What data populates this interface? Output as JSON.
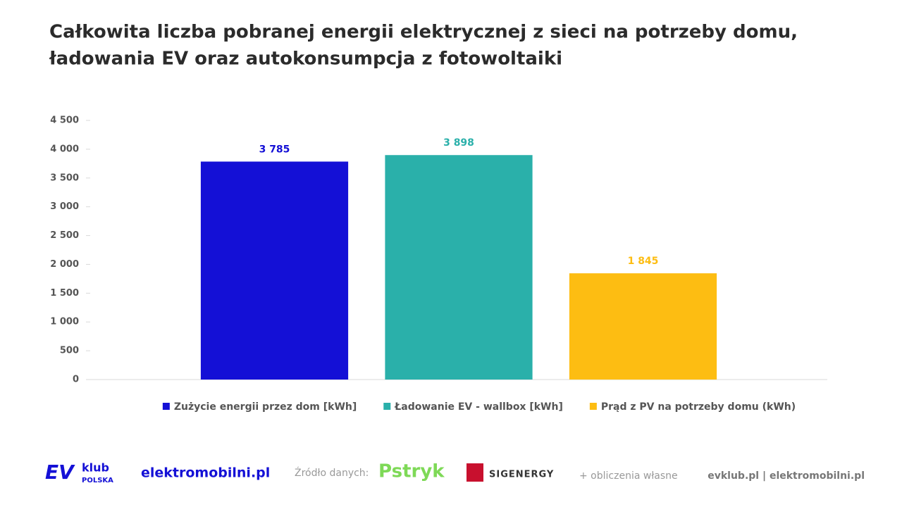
{
  "chart_data": {
    "type": "bar",
    "title": [
      "Całkowita liczba pobranej energii elektrycznej z sieci na potrzeby domu,",
      "ładowania EV oraz autokonsumpcja z fotowoltaiki"
    ],
    "categories": [
      null
    ],
    "series": [
      {
        "name": "Zużycie energii przez dom [kWh]",
        "color": "#1410d6",
        "values": [
          3785
        ],
        "value_labels": [
          "3 785"
        ]
      },
      {
        "name": "Ładowanie EV - wallbox [kWh]",
        "color": "#2ab0aa",
        "values": [
          3898
        ],
        "value_labels": [
          "3 898"
        ]
      },
      {
        "name": "Prąd z PV na potrzeby domu (kWh)",
        "color": "#fdbd12",
        "values": [
          1845
        ],
        "value_labels": [
          "1 845"
        ]
      }
    ],
    "ylim": [
      0,
      4500
    ],
    "yticks": [
      0,
      500,
      {
        "value": 1000,
        "label": "1 000"
      },
      {
        "value": 1500,
        "label": "1 500"
      },
      {
        "value": 2000,
        "label": "2 000"
      },
      {
        "value": 2500,
        "label": "2 500"
      },
      {
        "value": 3000,
        "label": "3 000"
      },
      {
        "value": 3500,
        "label": "3 500"
      },
      {
        "value": 4000,
        "label": "4 000"
      },
      {
        "value": 4500,
        "label": "4 500"
      }
    ],
    "grid": false,
    "legend": "bottom"
  },
  "footer": {
    "logo_ev": "EV",
    "logo_klub": "klub",
    "logo_polska": "POLSKA",
    "brand": "elektromobilni.pl",
    "source_label": "Źródło danych:",
    "source_1": "Pstryk",
    "source_2": "SIGENERGY",
    "note": "+ obliczenia własne",
    "sites": "evklub.pl | elektromobilni.pl"
  }
}
